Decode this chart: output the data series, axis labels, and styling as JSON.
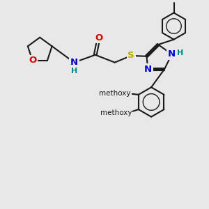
{
  "bg_color": "#e8e8e8",
  "bond_color": "#1a1a1a",
  "bond_lw": 1.5,
  "atom_colors": {
    "O": "#dd0000",
    "N": "#0000cc",
    "S": "#bbaa00",
    "H_teal": "#008888"
  },
  "afs": 9.5,
  "sfs": 8.0,
  "xlim": [
    0,
    10
  ],
  "ylim": [
    0,
    10
  ]
}
